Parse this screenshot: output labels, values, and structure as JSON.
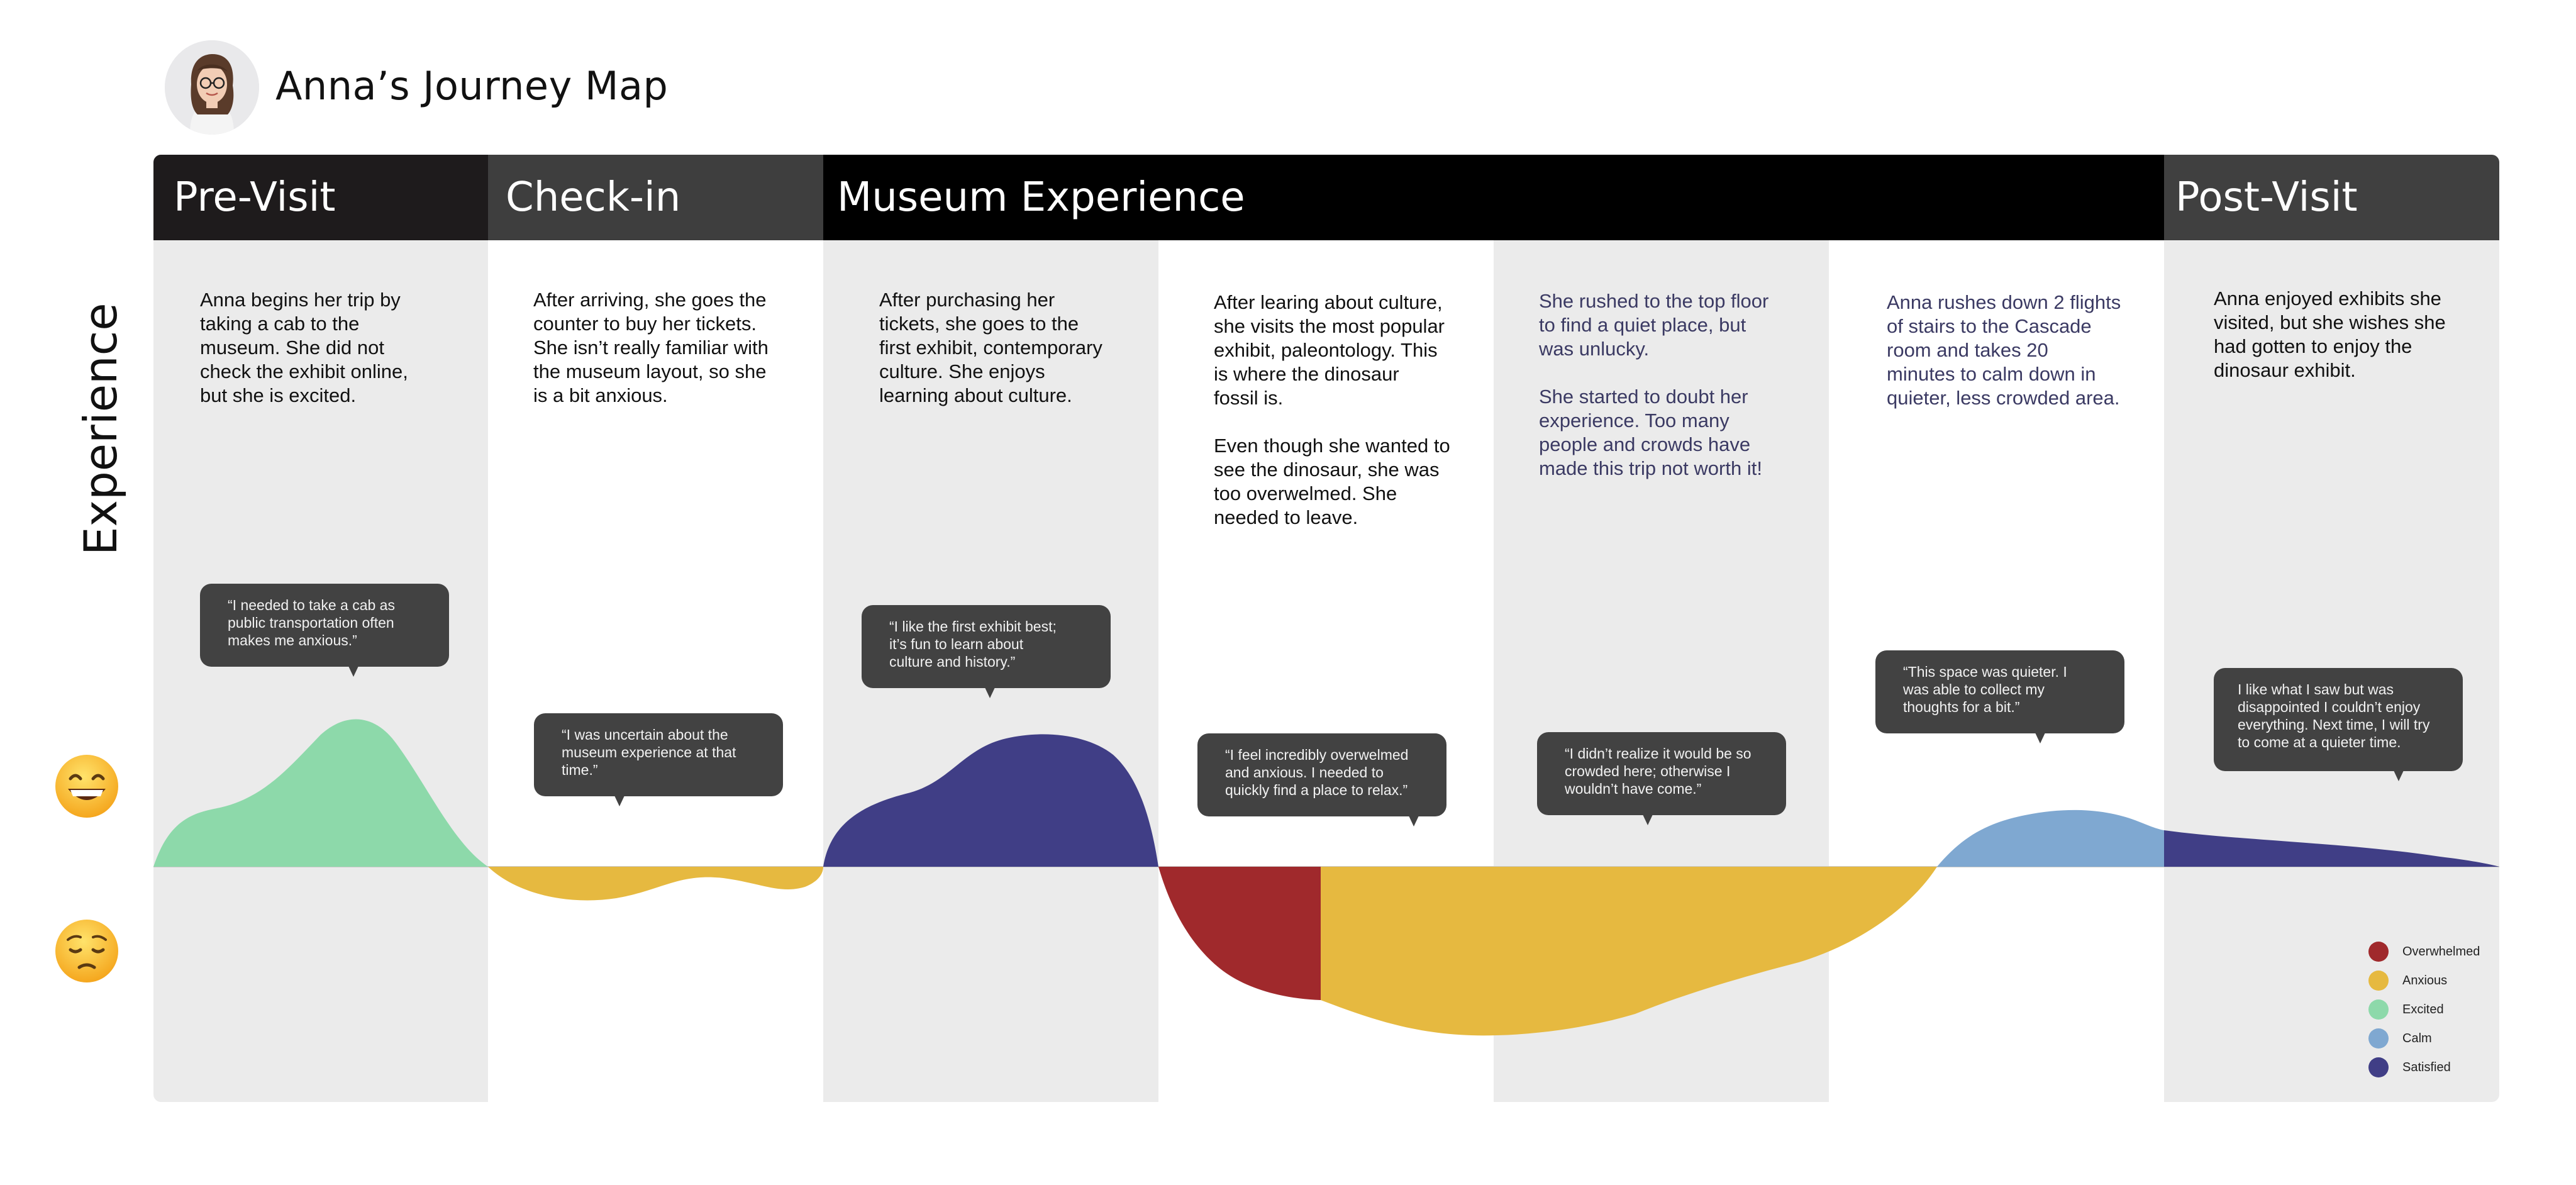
{
  "header": {
    "title": "Anna’s Journey Map"
  },
  "side_label": "Experience",
  "emoji": {
    "happy": {
      "icon": "grinning-face-icon"
    },
    "sad": {
      "icon": "pensive-face-icon"
    }
  },
  "phases": [
    {
      "label": "Pre-Visit",
      "color": "#1e1b1c"
    },
    {
      "label": "Check-in",
      "color": "#3e3e3e"
    },
    {
      "label": "Museum Experience",
      "color": "#000000"
    },
    {
      "label": "Post-Visit",
      "color": "#404040"
    }
  ],
  "steps": [
    {
      "description": "Anna begins her trip by\ntaking a cab to the\nmuseum. She did not\ncheck the exhibit online,\nbut she is excited.",
      "quote": "“I needed to take a cab as\npublic transportation often\nmakes me anxious.”"
    },
    {
      "description": "After arriving, she goes the\ncounter to buy her tickets.\nShe isn’t really familiar with\nthe museum layout, so she\nis a bit anxious.",
      "quote": "“I was uncertain about the\nmuseum experience at that\ntime.”"
    },
    {
      "description": "After purchasing her\ntickets, she goes to the\nfirst exhibit, contemporary\nculture. She enjoys\nlearning about culture.",
      "quote": "“I like the first exhibit best;\nit’s fun to learn about\nculture and history.”"
    },
    {
      "description": "After learing about culture,\nshe visits the most popular\nexhibit, paleontology. This\nis where the dinosaur\nfossil is.\n\nEven though she wanted to\nsee the dinosaur, she was\ntoo overwelmed. She\nneeded to leave.",
      "quote": "“I feel incredibly overwelmed\nand anxious. I needed to\nquickly find a place to relax.”"
    },
    {
      "description": "She rushed to the top floor\nto find a quiet place, but\nwas unlucky.\n\nShe started to doubt her\nexperience. Too many\npeople and crowds have\nmade this trip not worth it!",
      "quote": "“I didn’t realize it would be so\ncrowded here; otherwise I\nwouldn’t have come.”"
    },
    {
      "description": "Anna rushes down 2 flights\nof stairs to the Cascade\nroom and takes 20\nminutes to calm down in\nquieter, less crowded area.",
      "quote": "“This space was quieter. I\nwas able to collect my\nthoughts for a bit.”"
    },
    {
      "description": "Anna enjoyed exhibits she\nvisited, but she wishes she\nhad gotten to enjoy the\ndinosaur exhibit.",
      "quote": "I like what I saw but was\ndisappointed I couldn’t enjoy\neverything. Next time, I will try\nto come at a quieter time."
    }
  ],
  "legend": [
    {
      "label": "Overwhelmed",
      "color": "#a0292c"
    },
    {
      "label": "Anxious",
      "color": "#e6b940"
    },
    {
      "label": "Excited",
      "color": "#8dd9aa"
    },
    {
      "label": "Calm",
      "color": "#7fa8d1"
    },
    {
      "label": "Satisfied",
      "color": "#403e86"
    }
  ]
}
